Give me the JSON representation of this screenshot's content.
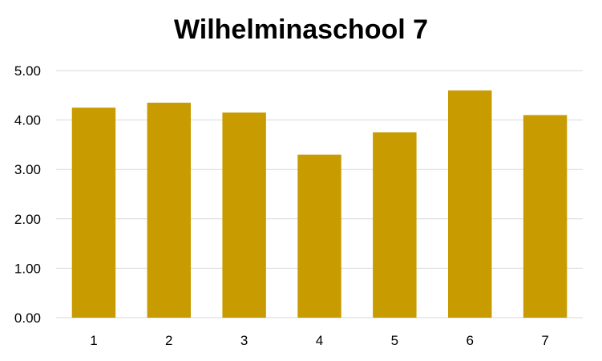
{
  "chart_data": {
    "type": "bar",
    "title": "Wilhelminaschool 7",
    "xlabel": "",
    "ylabel": "",
    "categories": [
      "1",
      "2",
      "3",
      "4",
      "5",
      "6",
      "7"
    ],
    "values": [
      4.25,
      4.35,
      4.15,
      3.3,
      3.75,
      4.6,
      4.1
    ],
    "ylim": [
      0,
      5
    ],
    "yticks": [
      "0.00",
      "1.00",
      "2.00",
      "3.00",
      "4.00",
      "5.00"
    ],
    "grid": true,
    "legend": "none",
    "bar_color": "#C89B00",
    "grid_color": "#D9D9D9"
  }
}
